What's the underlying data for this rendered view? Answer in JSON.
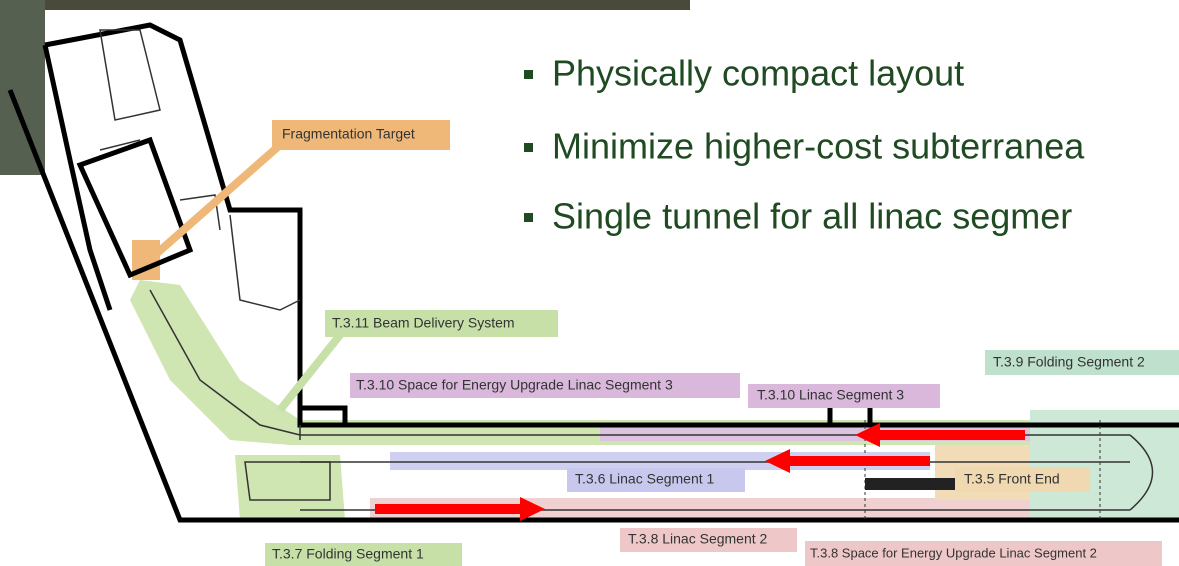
{
  "bullets": [
    "Physically compact layout",
    "Minimize higher-cost subterranea",
    "Single tunnel for all linac segmer"
  ],
  "labels": {
    "fragmentation_target": "Fragmentation Target",
    "beam_delivery": "T.3.11 Beam Delivery System",
    "upgrade_segment_3": "T.3.10 Space for Energy Upgrade Linac Segment 3",
    "linac_segment_3": "T.3.10 Linac Segment 3",
    "folding_segment_2": "T.3.9 Folding Segment 2",
    "linac_segment_1": "T.3.6 Linac Segment 1",
    "front_end": "T.3.5 Front End",
    "folding_segment_1": "T.3.7 Folding Segment 1",
    "linac_segment_2": "T.3.8 Linac Segment 2",
    "upgrade_segment_2": "T.3.8 Space for Energy Upgrade Linac Segment 2"
  }
}
